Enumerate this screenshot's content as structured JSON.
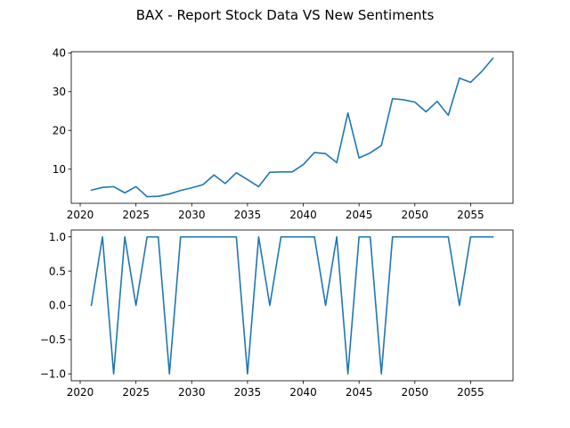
{
  "title": "BAX - Report Stock Data VS New Sentiments",
  "chart_data": [
    {
      "type": "line",
      "title": "",
      "xlabel": "",
      "ylabel": "",
      "xlim": [
        2019.2,
        2058.8
      ],
      "ylim": [
        1.2,
        40.3
      ],
      "xticks": [
        2020,
        2025,
        2030,
        2035,
        2040,
        2045,
        2050,
        2055
      ],
      "yticks": [
        10,
        20,
        30,
        40
      ],
      "grid": false,
      "color": "#1f77b4",
      "series": [
        {
          "x": [
            2021,
            2022,
            2023,
            2024,
            2025,
            2026,
            2027,
            2028,
            2029,
            2030,
            2031,
            2032,
            2033,
            2034,
            2035,
            2036,
            2037,
            2038,
            2039,
            2040,
            2041,
            2042,
            2043,
            2044,
            2045,
            2046,
            2047,
            2048,
            2049,
            2050,
            2051,
            2052,
            2053,
            2054,
            2055,
            2056,
            2057
          ],
          "values": [
            4.6,
            5.3,
            5.5,
            3.9,
            5.5,
            2.9,
            3.0,
            3.6,
            4.5,
            5.2,
            6.0,
            8.5,
            6.3,
            9.1,
            7.3,
            5.5,
            9.2,
            9.3,
            9.3,
            11.2,
            14.3,
            14.0,
            11.7,
            24.5,
            12.9,
            14.2,
            16.1,
            28.2,
            27.9,
            27.3,
            24.8,
            27.5,
            23.9,
            33.5,
            32.4,
            35.2,
            38.6
          ]
        }
      ]
    },
    {
      "type": "line",
      "title": "",
      "xlabel": "",
      "ylabel": "",
      "xlim": [
        2019.2,
        2058.8
      ],
      "ylim": [
        -1.1,
        1.1
      ],
      "xticks": [
        2020,
        2025,
        2030,
        2035,
        2040,
        2045,
        2050,
        2055
      ],
      "yticks": [
        -1.0,
        -0.5,
        0.0,
        0.5,
        1.0
      ],
      "grid": false,
      "color": "#1f77b4",
      "series": [
        {
          "x": [
            2021,
            2022,
            2023,
            2024,
            2025,
            2026,
            2027,
            2028,
            2029,
            2030,
            2031,
            2032,
            2033,
            2034,
            2035,
            2036,
            2037,
            2038,
            2039,
            2040,
            2041,
            2042,
            2043,
            2044,
            2045,
            2046,
            2047,
            2048,
            2049,
            2050,
            2051,
            2052,
            2053,
            2054,
            2055,
            2056,
            2057
          ],
          "values": [
            0,
            1,
            -1,
            1,
            0,
            1,
            1,
            -1,
            1,
            1,
            1,
            1,
            1,
            1,
            -1,
            1,
            0,
            1,
            1,
            1,
            1,
            0,
            1,
            -1,
            1,
            1,
            -1,
            1,
            1,
            1,
            1,
            1,
            1,
            0,
            1,
            1,
            1
          ]
        }
      ]
    }
  ]
}
